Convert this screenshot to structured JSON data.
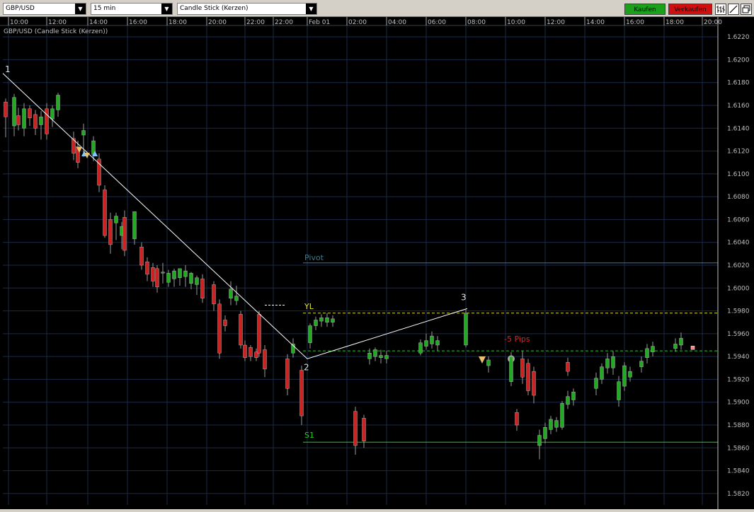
{
  "toolbar": {
    "symbol": "GBP/USD",
    "timeframe": "15 min",
    "chart_style": "Candle Stick (Kerzen)",
    "buy_label": "Kaufen",
    "sell_label": "Verkaufen",
    "icons": [
      "bar-style-icon",
      "draw-line-icon",
      "detach-window-icon"
    ]
  },
  "colors": {
    "background": "#000000",
    "grid": "#1a2a4a",
    "bull": "#22aa22",
    "bear": "#cc2222",
    "trend_line": "#ffffff",
    "pivot": "#4a6fa0",
    "yl": "#e0e020",
    "s1": "#22cc22",
    "entry": "#22cc22",
    "pips_label": "#dd2222"
  },
  "chart_data": {
    "type": "candlestick",
    "title": "GBP/USD (Candle Stick (Kerzen))",
    "xlabel": "",
    "ylabel": "",
    "ylim": [
      1.581,
      1.623
    ],
    "y_ticks": [
      "1.6220",
      "1.6200",
      "1.6180",
      "1.6160",
      "1.6140",
      "1.6120",
      "1.6100",
      "1.6080",
      "1.6060",
      "1.6040",
      "1.6020",
      "1.6000",
      "1.5980",
      "1.5960",
      "1.5940",
      "1.5920",
      "1.5900",
      "1.5880",
      "1.5860",
      "1.5840",
      "1.5820"
    ],
    "x_ticks": [
      "10:00",
      "12:00",
      "14:00",
      "16:00",
      "18:00",
      "20:00",
      "22:00",
      "22:00",
      "Feb 01",
      "02:00",
      "04:00",
      "06:00",
      "08:00",
      "10:00",
      "12:00",
      "14:00",
      "16:00",
      "18:00",
      "20:00"
    ],
    "bull_series": [
      [
        1.6167,
        1.617,
        1.6133,
        1.6142
      ],
      [
        1.614,
        1.6162,
        1.6133,
        1.6157
      ],
      [
        1.6143,
        1.6155,
        1.613,
        1.615
      ],
      [
        1.6148,
        1.616,
        1.6141,
        1.6157
      ],
      [
        1.6156,
        1.6171,
        1.615,
        1.6169
      ],
      [
        1.6134,
        1.6144,
        1.6115,
        1.6138
      ],
      [
        1.6117,
        1.6133,
        1.6111,
        1.6129
      ],
      [
        1.6057,
        1.6066,
        1.6042,
        1.6063
      ],
      [
        1.6046,
        1.6058,
        1.6034,
        1.6054
      ],
      [
        1.6043,
        1.6066,
        1.6038,
        1.6067
      ],
      [
        1.6014,
        1.6022,
        1.6004,
        1.6013
      ],
      [
        1.6005,
        1.6016,
        1.6001,
        1.6013
      ],
      [
        1.6008,
        1.6017,
        1.6001,
        1.6015
      ],
      [
        1.6009,
        1.6016,
        1.6002,
        1.6017
      ],
      [
        1.601,
        1.602,
        1.6001,
        1.6015
      ],
      [
        1.6004,
        1.6014,
        1.5999,
        1.6013
      ],
      [
        1.6003,
        1.6011,
        1.5994,
        1.6009
      ],
      [
        1.5991,
        1.6006,
        1.5985,
        1.5999
      ],
      [
        1.5989,
        1.6002,
        1.5985,
        1.5993
      ],
      [
        1.5943,
        1.5956,
        1.5939,
        1.5951
      ],
      [
        1.5952,
        1.5969,
        1.5947,
        1.5967
      ],
      [
        1.5967,
        1.5975,
        1.5963,
        1.5972
      ],
      [
        1.5971,
        1.5977,
        1.5966,
        1.5974
      ],
      [
        1.597,
        1.5978,
        1.5966,
        1.5974
      ],
      [
        1.597,
        1.5976,
        1.5966,
        1.5973
      ],
      [
        1.5938,
        1.5947,
        1.5933,
        1.5943
      ],
      [
        1.594,
        1.5948,
        1.5936,
        1.5946
      ],
      [
        1.5939,
        1.5946,
        1.5934,
        1.5941
      ],
      [
        1.5938,
        1.5945,
        1.5934,
        1.5941
      ],
      [
        1.5943,
        1.5955,
        1.5941,
        1.5952
      ],
      [
        1.5949,
        1.596,
        1.5946,
        1.5954
      ],
      [
        1.5951,
        1.5962,
        1.5947,
        1.5958
      ],
      [
        1.595,
        1.5958,
        1.5945,
        1.5954
      ],
      [
        1.595,
        1.5981,
        1.5948,
        1.5978
      ],
      [
        1.5932,
        1.594,
        1.5926,
        1.5937
      ],
      [
        1.5918,
        1.5944,
        1.5914,
        1.594
      ],
      [
        1.5862,
        1.5876,
        1.585,
        1.5871
      ],
      [
        1.5868,
        1.5882,
        1.5864,
        1.5878
      ],
      [
        1.5876,
        1.5888,
        1.5872,
        1.5885
      ],
      [
        1.5878,
        1.5887,
        1.5874,
        1.5884
      ],
      [
        1.5878,
        1.5901,
        1.5876,
        1.5899
      ],
      [
        1.5898,
        1.591,
        1.5894,
        1.5905
      ],
      [
        1.5902,
        1.5912,
        1.5897,
        1.5909
      ],
      [
        1.5912,
        1.5926,
        1.5906,
        1.5921
      ],
      [
        1.592,
        1.5934,
        1.5916,
        1.5931
      ],
      [
        1.593,
        1.5943,
        1.5925,
        1.5938
      ],
      [
        1.593,
        1.5945,
        1.5924,
        1.594
      ],
      [
        1.5902,
        1.5923,
        1.5896,
        1.5918
      ],
      [
        1.5914,
        1.5935,
        1.591,
        1.5932
      ],
      [
        1.5922,
        1.5931,
        1.5918,
        1.5927
      ],
      [
        1.5931,
        1.594,
        1.5926,
        1.5936
      ],
      [
        1.5939,
        1.5951,
        1.5934,
        1.5947
      ],
      [
        1.5944,
        1.5953,
        1.594,
        1.5949
      ],
      [
        1.5947,
        1.5956,
        1.5944,
        1.5951
      ],
      [
        1.595,
        1.5961,
        1.5946,
        1.5956
      ]
    ],
    "bear_series": [
      [
        1.6163,
        1.6166,
        1.6132,
        1.615
      ],
      [
        1.6151,
        1.6158,
        1.6138,
        1.6143
      ],
      [
        1.6157,
        1.616,
        1.6142,
        1.6149
      ],
      [
        1.6152,
        1.6156,
        1.6134,
        1.614
      ],
      [
        1.6157,
        1.6162,
        1.613,
        1.6135
      ],
      [
        1.6131,
        1.6137,
        1.6112,
        1.6118
      ],
      [
        1.6124,
        1.6129,
        1.6105,
        1.611
      ],
      [
        1.6113,
        1.6118,
        1.6084,
        1.609
      ],
      [
        1.6086,
        1.609,
        1.6044,
        1.6046
      ],
      [
        1.606,
        1.6066,
        1.603,
        1.6038
      ],
      [
        1.6062,
        1.6068,
        1.6028,
        1.6033
      ],
      [
        1.6036,
        1.604,
        1.6016,
        1.602
      ],
      [
        1.6023,
        1.6027,
        1.6006,
        1.6012
      ],
      [
        1.6018,
        1.6022,
        1.6001,
        1.6006
      ],
      [
        1.6017,
        1.602,
        1.5996,
        1.6001
      ],
      [
        1.6008,
        1.6012,
        1.5987,
        1.5991
      ],
      [
        1.6003,
        1.6006,
        1.598,
        1.5986
      ],
      [
        1.5986,
        1.599,
        1.5938,
        1.5943
      ],
      [
        1.5972,
        1.5976,
        1.5962,
        1.5967
      ],
      [
        1.5977,
        1.598,
        1.5947,
        1.595
      ],
      [
        1.595,
        1.5954,
        1.5936,
        1.5939
      ],
      [
        1.5948,
        1.595,
        1.5936,
        1.594
      ],
      [
        1.5944,
        1.5947,
        1.5936,
        1.5939
      ],
      [
        1.5977,
        1.598,
        1.594,
        1.5943
      ],
      [
        1.5946,
        1.595,
        1.5922,
        1.5929
      ],
      [
        1.5938,
        1.5942,
        1.5906,
        1.5912
      ],
      [
        1.5928,
        1.5932,
        1.588,
        1.5888
      ],
      [
        1.5892,
        1.5896,
        1.5854,
        1.5862
      ],
      [
        1.5886,
        1.5889,
        1.586,
        1.5866
      ],
      [
        1.5891,
        1.5894,
        1.5875,
        1.588
      ],
      [
        1.5938,
        1.5945,
        1.5916,
        1.5922
      ],
      [
        1.5934,
        1.5938,
        1.5906,
        1.591
      ],
      [
        1.5927,
        1.5931,
        1.5899,
        1.5906
      ],
      [
        1.5935,
        1.5939,
        1.5923,
        1.5927
      ]
    ],
    "bull_x": [
      20,
      34,
      58,
      74,
      82,
      118,
      132,
      164,
      172,
      190,
      230,
      238,
      246,
      254,
      262,
      270,
      278,
      326,
      334,
      414,
      438,
      446,
      454,
      462,
      470,
      522,
      530,
      538,
      546,
      594,
      602,
      610,
      618,
      658,
      690,
      722,
      762,
      770,
      778,
      786,
      794,
      802,
      810,
      842,
      850,
      858,
      866,
      874,
      882,
      890,
      906,
      914,
      922,
      954,
      962
    ],
    "bear_x": [
      8,
      26,
      42,
      50,
      66,
      104,
      110,
      140,
      148,
      156,
      176,
      200,
      208,
      216,
      222,
      286,
      302,
      310,
      318,
      340,
      346,
      354,
      362,
      366,
      374,
      406,
      426,
      502,
      514,
      730,
      738,
      746,
      754,
      802
    ],
    "pivot_level": 1.6022,
    "pivot_label": "Pivot",
    "yl_level": 1.5978,
    "yl_label": "YL",
    "s1_level": 1.5865,
    "s1_label": "S1",
    "entry_level": 1.5945,
    "pips_label": "-5 Pips",
    "point_labels": [
      "1",
      "2",
      "3"
    ],
    "trend_points": [
      [
        1.6188,
        0
      ],
      [
        1.5938,
        430
      ],
      [
        1.5982,
        656
      ]
    ]
  }
}
